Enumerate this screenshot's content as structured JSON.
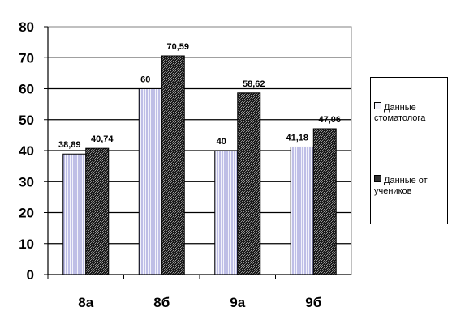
{
  "chart_data": {
    "type": "bar",
    "categories": [
      "8а",
      "8б",
      "9а",
      "9б"
    ],
    "series": [
      {
        "name": "Данные стоматолога",
        "values": [
          38.89,
          60,
          40,
          41.18
        ],
        "labels": [
          "38,89",
          "60",
          "40",
          "41,18"
        ],
        "color": "#e4e4f6"
      },
      {
        "name": "Данные от учеников",
        "values": [
          40.74,
          70.59,
          58.62,
          47.06
        ],
        "labels": [
          "40,74",
          "70,59",
          "58,62",
          "47,06"
        ],
        "color": "#303030"
      }
    ],
    "y_ticks": [
      "0",
      "10",
      "20",
      "30",
      "40",
      "50",
      "60",
      "70",
      "80"
    ],
    "ylim": [
      0,
      80
    ],
    "grid": true,
    "legend": "right",
    "title": "",
    "xlabel": "",
    "ylabel": ""
  }
}
